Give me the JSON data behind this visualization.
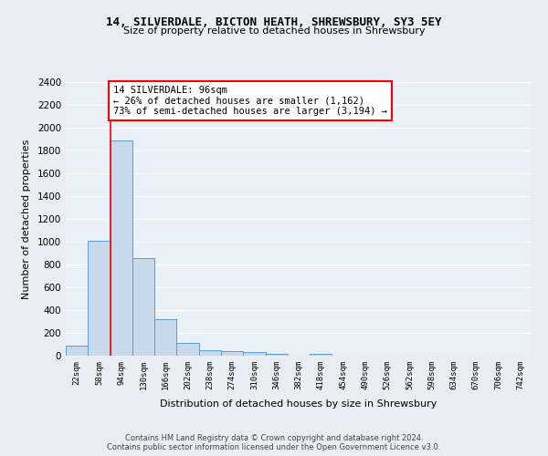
{
  "title_line1": "14, SILVERDALE, BICTON HEATH, SHREWSBURY, SY3 5EY",
  "title_line2": "Size of property relative to detached houses in Shrewsbury",
  "xlabel": "Distribution of detached houses by size in Shrewsbury",
  "ylabel": "Number of detached properties",
  "bin_labels": [
    "22sqm",
    "58sqm",
    "94sqm",
    "130sqm",
    "166sqm",
    "202sqm",
    "238sqm",
    "274sqm",
    "310sqm",
    "346sqm",
    "382sqm",
    "418sqm",
    "454sqm",
    "490sqm",
    "526sqm",
    "562sqm",
    "598sqm",
    "634sqm",
    "670sqm",
    "706sqm",
    "742sqm"
  ],
  "bar_values": [
    90,
    1010,
    1890,
    860,
    320,
    110,
    50,
    40,
    30,
    20,
    0,
    20,
    0,
    0,
    0,
    0,
    0,
    0,
    0,
    0,
    0
  ],
  "bar_color": "#c9d9ec",
  "bar_edge_color": "#5b9bd5",
  "property_line_index": 2,
  "annotation_text": "14 SILVERDALE: 96sqm\n← 26% of detached houses are smaller (1,162)\n73% of semi-detached houses are larger (3,194) →",
  "annotation_box_color": "white",
  "annotation_box_edge_color": "red",
  "property_line_color": "red",
  "ylim": [
    0,
    2400
  ],
  "yticks": [
    0,
    200,
    400,
    600,
    800,
    1000,
    1200,
    1400,
    1600,
    1800,
    2000,
    2200,
    2400
  ],
  "footer_line1": "Contains HM Land Registry data © Crown copyright and database right 2024.",
  "footer_line2": "Contains public sector information licensed under the Open Government Licence v3.0.",
  "bg_color": "#e8eef4",
  "plot_bg_color": "#eaf0f7"
}
